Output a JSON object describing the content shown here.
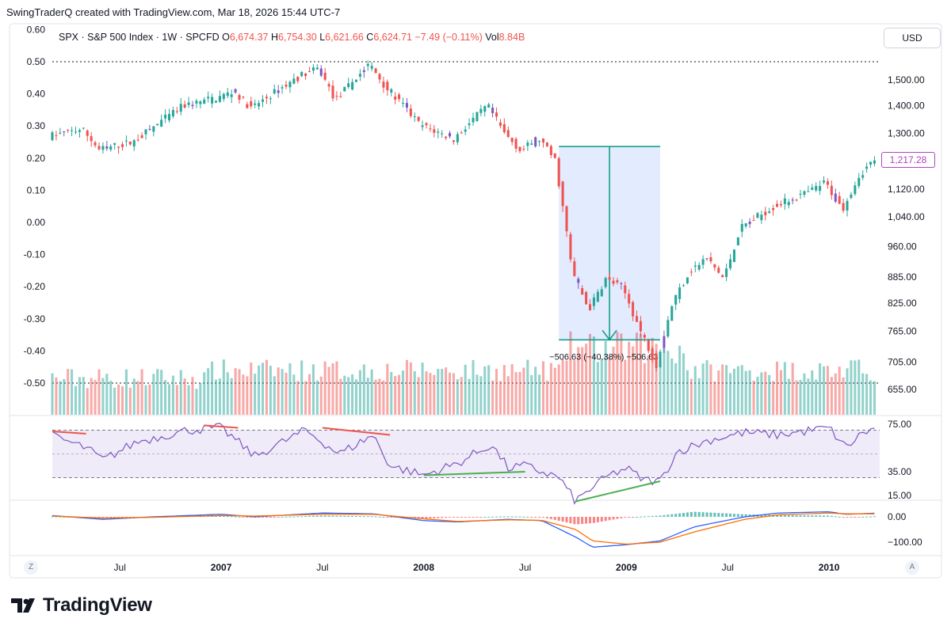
{
  "header": {
    "credit": "SwingTraderQ created with TradingView.com, Mar 18, 2026 15:44 UTC-7",
    "symbol_desc": "SPX · S&P 500 Index · 1W · SPCFD",
    "o_label": "O",
    "o_value": "6,674.37",
    "h_label": "H",
    "h_value": "6,754.30",
    "l_label": "L",
    "l_value": "6,621.66",
    "c_label": "C",
    "c_value": "6,624.71",
    "change": "−7.49 (−0.11%)",
    "vol_label": "Vol",
    "vol_value": "8.84B",
    "currency": "USD"
  },
  "brand": {
    "name": "TradingView"
  },
  "buttons": {
    "z": "Z",
    "a": "A"
  },
  "colors": {
    "up": "#26a69a",
    "down": "#ef5350",
    "purple": "#7e57c2",
    "measure": "#2962ff",
    "rsi": "#7e57c2",
    "macd": "#2962ff",
    "signal": "#ff6d00"
  },
  "chart_data": {
    "type": "candlestick",
    "symbol": "SPX",
    "timeframe": "1W",
    "last_price": "1,217.28",
    "price_axis": {
      "ticks": [
        "1,500.00",
        "1,400.00",
        "1,300.00",
        "1,120.00",
        "1,040.00",
        "960.00",
        "885.00",
        "825.00",
        "765.00",
        "705.00",
        "655.00"
      ],
      "tick_values": [
        1500,
        1400,
        1300,
        1120,
        1040,
        960,
        885,
        825,
        765,
        705,
        655
      ]
    },
    "left_axis": {
      "ticks": [
        "0.60",
        "0.50",
        "0.40",
        "0.30",
        "0.20",
        "0.10",
        "0.00",
        "-0.10",
        "-0.20",
        "-0.30",
        "-0.40",
        "-0.50"
      ],
      "tick_values": [
        0.6,
        0.5,
        0.4,
        0.3,
        0.2,
        0.1,
        0,
        -0.1,
        -0.2,
        -0.3,
        -0.4,
        -0.5
      ],
      "dotted_levels": [
        0.5,
        -0.5
      ]
    },
    "time_axis": {
      "labels": [
        "Jul",
        "2007",
        "Jul",
        "2008",
        "Jul",
        "2009",
        "Jul",
        "2010"
      ],
      "bold": [
        false,
        true,
        false,
        true,
        false,
        true,
        false,
        true
      ],
      "dates": [
        "2006-07",
        "2007-01",
        "2007-07",
        "2008-01",
        "2008-07",
        "2009-01",
        "2009-07",
        "2010-01"
      ]
    },
    "date_range": [
      "2006-03",
      "2010-04"
    ],
    "price_path": [
      [
        "2006-03",
        1290
      ],
      [
        "2006-05",
        1315
      ],
      [
        "2006-06",
        1245
      ],
      [
        "2006-08",
        1270
      ],
      [
        "2006-11",
        1400
      ],
      [
        "2007-01",
        1430
      ],
      [
        "2007-02",
        1455
      ],
      [
        "2007-03",
        1390
      ],
      [
        "2007-06",
        1520
      ],
      [
        "2007-07",
        1545
      ],
      [
        "2007-08",
        1420
      ],
      [
        "2007-10",
        1565
      ],
      [
        "2007-11",
        1470
      ],
      [
        "2008-01",
        1330
      ],
      [
        "2008-03",
        1280
      ],
      [
        "2008-05",
        1400
      ],
      [
        "2008-06",
        1300
      ],
      [
        "2008-07",
        1240
      ],
      [
        "2008-08",
        1285
      ],
      [
        "2008-09",
        1210
      ],
      [
        "2008-10",
        900
      ],
      [
        "2008-11",
        810
      ],
      [
        "2008-12",
        880
      ],
      [
        "2009-01",
        860
      ],
      [
        "2009-02",
        770
      ],
      [
        "2009-03",
        700
      ],
      [
        "2009-04",
        830
      ],
      [
        "2009-05",
        900
      ],
      [
        "2009-06",
        930
      ],
      [
        "2009-07",
        880
      ],
      [
        "2009-08",
        1010
      ],
      [
        "2009-10",
        1070
      ],
      [
        "2009-12",
        1110
      ],
      [
        "2010-01",
        1140
      ],
      [
        "2010-02",
        1060
      ],
      [
        "2010-03",
        1160
      ],
      [
        "2010-04",
        1217
      ]
    ],
    "measurement": {
      "label": "−506.63 (−40.38%) −506.63",
      "from": [
        "2008-09",
        1255
      ],
      "to": [
        "2009-03",
        748
      ],
      "change": -506.63,
      "change_pct": -40.38
    },
    "rsi": {
      "ticks": [
        "75.00",
        "35.00",
        "15.00"
      ],
      "tick_values": [
        75,
        35,
        15
      ],
      "band": [
        70,
        30
      ],
      "divergence_lines": [
        {
          "from": [
            "2006-03",
            69
          ],
          "to": [
            "2006-05",
            67
          ],
          "color": "#ef5350"
        },
        {
          "from": [
            "2006-12",
            74
          ],
          "to": [
            "2007-02",
            72
          ],
          "color": "#ef5350"
        },
        {
          "from": [
            "2007-07",
            72
          ],
          "to": [
            "2007-11",
            66
          ],
          "color": "#ef5350"
        },
        {
          "from": [
            "2008-01",
            32
          ],
          "to": [
            "2008-07",
            35
          ],
          "color": "#4caf50"
        },
        {
          "from": [
            "2008-10",
            10
          ],
          "to": [
            "2009-03",
            27
          ],
          "color": "#4caf50"
        }
      ],
      "path": [
        [
          "2006-03",
          65
        ],
        [
          "2006-05",
          55
        ],
        [
          "2006-06",
          45
        ],
        [
          "2006-08",
          60
        ],
        [
          "2006-11",
          70
        ],
        [
          "2007-01",
          72
        ],
        [
          "2007-03",
          48
        ],
        [
          "2007-06",
          70
        ],
        [
          "2007-08",
          50
        ],
        [
          "2007-10",
          66
        ],
        [
          "2007-11",
          40
        ],
        [
          "2008-01",
          32
        ],
        [
          "2008-03",
          42
        ],
        [
          "2008-05",
          58
        ],
        [
          "2008-06",
          38
        ],
        [
          "2008-07",
          40
        ],
        [
          "2008-09",
          30
        ],
        [
          "2008-10",
          10
        ],
        [
          "2008-11",
          22
        ],
        [
          "2008-12",
          32
        ],
        [
          "2009-01",
          38
        ],
        [
          "2009-02",
          28
        ],
        [
          "2009-03",
          27
        ],
        [
          "2009-04",
          52
        ],
        [
          "2009-06",
          62
        ],
        [
          "2009-08",
          68
        ],
        [
          "2009-10",
          66
        ],
        [
          "2009-12",
          70
        ],
        [
          "2010-01",
          72
        ],
        [
          "2010-02",
          55
        ],
        [
          "2010-03",
          68
        ],
        [
          "2010-04",
          72
        ]
      ]
    },
    "macd": {
      "ticks": [
        "0.00",
        "−100.00"
      ],
      "tick_values": [
        0,
        -100
      ],
      "macd_path": [
        [
          "2006-03",
          5
        ],
        [
          "2006-06",
          -10
        ],
        [
          "2006-09",
          0
        ],
        [
          "2007-01",
          10
        ],
        [
          "2007-03",
          0
        ],
        [
          "2007-07",
          15
        ],
        [
          "2007-10",
          12
        ],
        [
          "2008-01",
          -15
        ],
        [
          "2008-03",
          -20
        ],
        [
          "2008-06",
          -10
        ],
        [
          "2008-08",
          -15
        ],
        [
          "2008-10",
          -80
        ],
        [
          "2008-11",
          -120
        ],
        [
          "2009-01",
          -110
        ],
        [
          "2009-03",
          -95
        ],
        [
          "2009-05",
          -40
        ],
        [
          "2009-08",
          0
        ],
        [
          "2009-10",
          15
        ],
        [
          "2010-01",
          20
        ],
        [
          "2010-02",
          10
        ],
        [
          "2010-04",
          15
        ]
      ],
      "signal_path": [
        [
          "2006-03",
          3
        ],
        [
          "2006-06",
          -5
        ],
        [
          "2006-09",
          -2
        ],
        [
          "2007-01",
          5
        ],
        [
          "2007-03",
          3
        ],
        [
          "2007-07",
          10
        ],
        [
          "2007-10",
          10
        ],
        [
          "2008-01",
          -8
        ],
        [
          "2008-03",
          -18
        ],
        [
          "2008-06",
          -12
        ],
        [
          "2008-08",
          -14
        ],
        [
          "2008-10",
          -50
        ],
        [
          "2008-11",
          -95
        ],
        [
          "2009-01",
          -108
        ],
        [
          "2009-03",
          -100
        ],
        [
          "2009-05",
          -60
        ],
        [
          "2009-08",
          -10
        ],
        [
          "2009-10",
          8
        ],
        [
          "2010-01",
          15
        ],
        [
          "2010-02",
          12
        ],
        [
          "2010-04",
          12
        ]
      ]
    }
  }
}
